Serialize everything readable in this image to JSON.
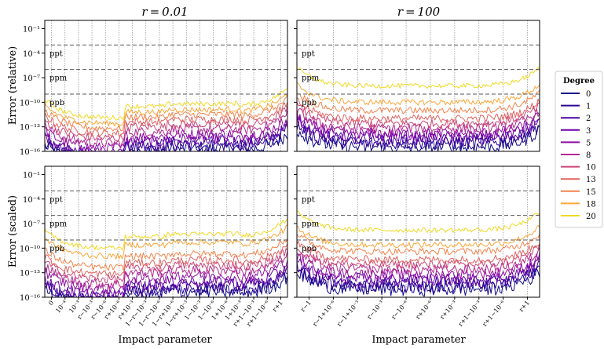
{
  "chart_data": {
    "type": "line",
    "titles": [
      "r = 0.01",
      "r = 100"
    ],
    "ylabels": [
      "Error (relative)",
      "Error (scaled)"
    ],
    "xlabel": "Impact parameter",
    "ylim_log10": [
      -16,
      0
    ],
    "ytick_labels": [
      "10⁻¹⁶",
      "10⁻¹³",
      "10⁻¹⁰",
      "10⁻⁷",
      "10⁻⁴",
      "10⁻¹"
    ],
    "ytick_exponents": [
      -16,
      -13,
      -10,
      -7,
      -4,
      -1
    ],
    "reference_lines": [
      {
        "label": "ppt",
        "log10": -3
      },
      {
        "label": "ppm",
        "log10": -6
      },
      {
        "label": "ppb",
        "log10": -9
      }
    ],
    "left_xticks": [
      "0",
      "10⁻⁴",
      "10⁻³",
      "r−10⁻³",
      "r−10⁻⁶",
      "r+10⁻⁶",
      "r+10⁻³",
      "1−r−10⁻³",
      "1−r−10⁻⁶",
      "1−r+10⁻⁶",
      "1−r+10⁻³",
      "1−10⁻³",
      "1−10⁻⁶",
      "1+10⁻⁶",
      "1+10⁻³",
      "r+1−10⁻³",
      "r+1−10⁻⁶",
      "r+1"
    ],
    "right_xticks": [
      "r−1",
      "r−1+10⁻⁶",
      "r−1+10⁻³",
      "r−10⁻³",
      "r−10⁻⁶",
      "r+10⁻⁶",
      "r+10⁻³",
      "r+1−10⁻³",
      "r+1−10⁻⁶",
      "r+1"
    ],
    "legend": {
      "title": "Degree",
      "position": "right",
      "entries": [
        "0",
        "1",
        "2",
        "3",
        "5",
        "8",
        "10",
        "13",
        "15",
        "18",
        "20"
      ],
      "colors": [
        "#0d0887",
        "#2c0594",
        "#4903a0",
        "#6a00a8",
        "#8f0da4",
        "#b12a90",
        "#cc4778",
        "#e16462",
        "#f2844b",
        "#fca636",
        "#f0d924"
      ]
    },
    "series_error_level_log10": {
      "top_left": [
        -16,
        -15.6,
        -15.2,
        -14.8,
        -14.2,
        -13.6,
        -13.0,
        -12.4,
        -11.8,
        -11.2,
        -10.5
      ],
      "top_right": [
        -15.5,
        -15.0,
        -14.6,
        -14.2,
        -13.8,
        -13.2,
        -12.6,
        -12.0,
        -11.0,
        -10.0,
        -8.0
      ],
      "bottom_left": [
        -15.6,
        -15.2,
        -14.8,
        -14.4,
        -13.6,
        -13.0,
        -12.4,
        -11.8,
        -11.0,
        -9.6,
        -8.6
      ],
      "bottom_right": [
        -15.0,
        -14.6,
        -14.2,
        -13.8,
        -13.2,
        -12.6,
        -12.0,
        -11.4,
        -10.4,
        -9.6,
        -7.8
      ]
    }
  }
}
